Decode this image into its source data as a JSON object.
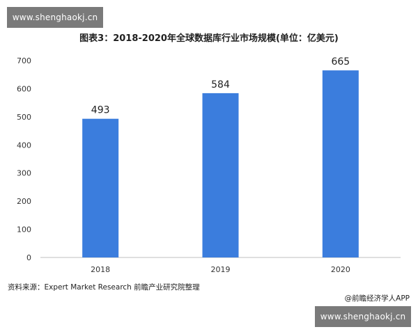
{
  "site_badge": {
    "top": "www.shenghaokj.cn",
    "bottom": "www.shenghaokj.cn"
  },
  "source_note": "资料来源：Expert Market Research 前瞻产业研究院整理",
  "credit_note": "@前瞻经济学人APP",
  "colors": {
    "bar": "#3b7ddd",
    "axis": "#bfbfbf",
    "badge": "#7a7a7a",
    "text": "#1f1f1f"
  },
  "chart_data": {
    "type": "bar",
    "title": "图表3：2018-2020年全球数据库行业市场规模(单位：亿美元)",
    "categories": [
      "2018",
      "2019",
      "2020"
    ],
    "values": [
      493,
      584,
      665
    ],
    "data_labels": [
      "493",
      "584",
      "665"
    ],
    "yticks": [
      "0",
      "100",
      "200",
      "300",
      "400",
      "500",
      "600",
      "700"
    ],
    "ylim": [
      0,
      700
    ],
    "xlabel": "",
    "ylabel": "",
    "grid": false,
    "legend": "none"
  }
}
